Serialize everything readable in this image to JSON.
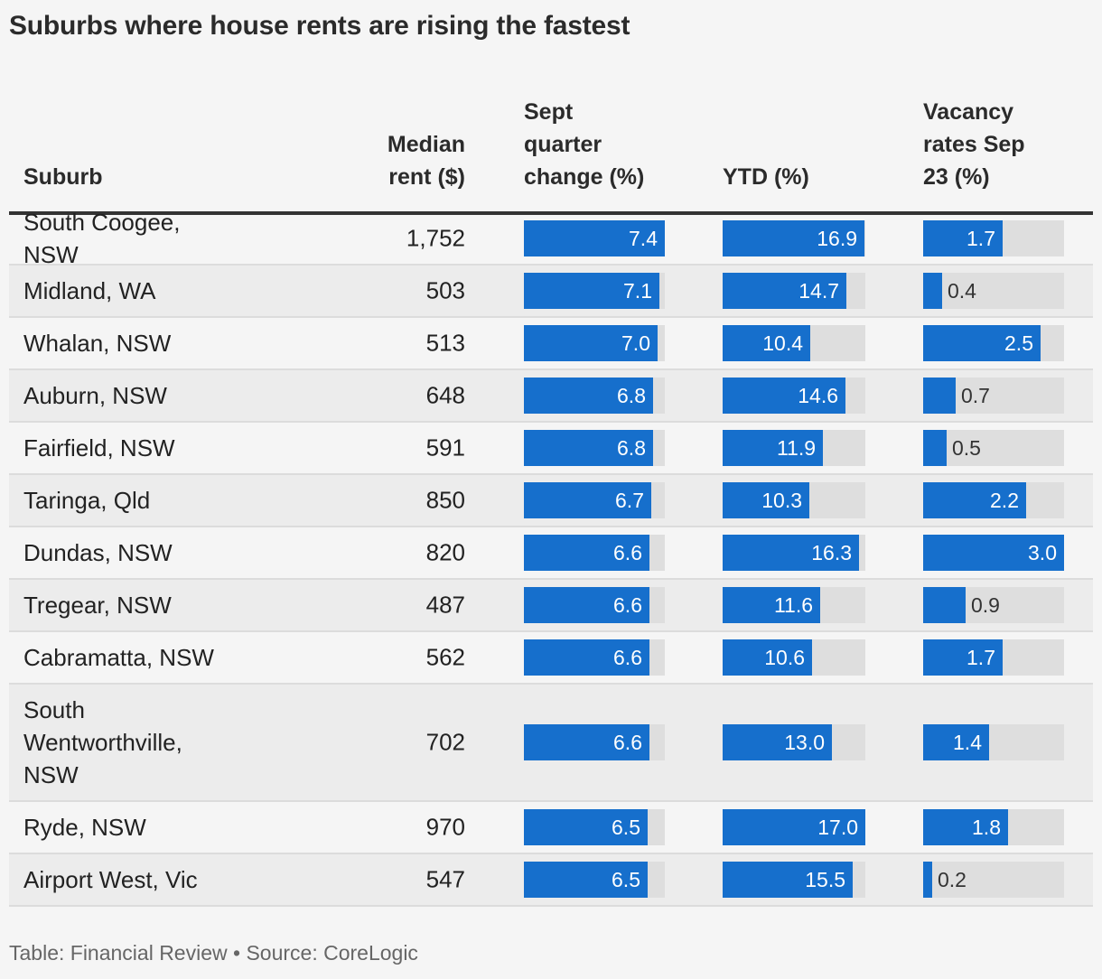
{
  "title": "Suburbs where house rents are rising the fastest",
  "columns": {
    "suburb": "Suburb",
    "rent": [
      "Median",
      "rent ($)"
    ],
    "quarter": [
      "Sept",
      "quarter",
      "change (%)"
    ],
    "ytd": "YTD (%)",
    "vacancy": [
      "Vacancy",
      "rates Sep",
      "23 (%)"
    ]
  },
  "footer": "Table: Financial Review • Source: CoreLogic",
  "colors": {
    "bar": "#166fcc",
    "track": "#dedede"
  },
  "chart_data": {
    "type": "table",
    "scales": {
      "quarter_max": 7.4,
      "ytd_max": 17.0,
      "vacancy_max": 3.0
    },
    "rows": [
      {
        "suburb": "South Coogee, NSW",
        "rent": "1,752",
        "quarter": 7.4,
        "ytd": 16.9,
        "vacancy": 1.7
      },
      {
        "suburb": "Midland, WA",
        "rent": "503",
        "quarter": 7.1,
        "ytd": 14.7,
        "vacancy": 0.4
      },
      {
        "suburb": "Whalan, NSW",
        "rent": "513",
        "quarter": 7.0,
        "ytd": 10.4,
        "vacancy": 2.5
      },
      {
        "suburb": "Auburn, NSW",
        "rent": "648",
        "quarter": 6.8,
        "ytd": 14.6,
        "vacancy": 0.7
      },
      {
        "suburb": "Fairfield, NSW",
        "rent": "591",
        "quarter": 6.8,
        "ytd": 11.9,
        "vacancy": 0.5
      },
      {
        "suburb": "Taringa, Qld",
        "rent": "850",
        "quarter": 6.7,
        "ytd": 10.3,
        "vacancy": 2.2
      },
      {
        "suburb": "Dundas, NSW",
        "rent": "820",
        "quarter": 6.6,
        "ytd": 16.3,
        "vacancy": 3.0
      },
      {
        "suburb": "Tregear, NSW",
        "rent": "487",
        "quarter": 6.6,
        "ytd": 11.6,
        "vacancy": 0.9
      },
      {
        "suburb": "Cabramatta, NSW",
        "rent": "562",
        "quarter": 6.6,
        "ytd": 10.6,
        "vacancy": 1.7
      },
      {
        "suburb": "South Wentworthville, NSW",
        "rent": "702",
        "quarter": 6.6,
        "ytd": 13.0,
        "vacancy": 1.4
      },
      {
        "suburb": "Ryde, NSW",
        "rent": "970",
        "quarter": 6.5,
        "ytd": 17.0,
        "vacancy": 1.8
      },
      {
        "suburb": "Airport West, Vic",
        "rent": "547",
        "quarter": 6.5,
        "ytd": 15.5,
        "vacancy": 0.2
      }
    ]
  }
}
